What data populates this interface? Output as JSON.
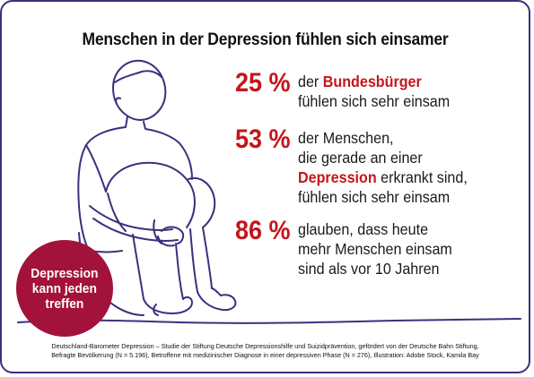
{
  "title": "Menschen in der Depression fühlen sich einsamer",
  "stats": [
    {
      "percent": "25 %",
      "lines": [
        {
          "before": "der ",
          "highlight": "Bundesbürger",
          "after": ""
        },
        {
          "before": "fühlen sich sehr einsam",
          "highlight": "",
          "after": ""
        }
      ]
    },
    {
      "percent": "53 %",
      "lines": [
        {
          "before": "der Menschen,",
          "highlight": "",
          "after": ""
        },
        {
          "before": "die gerade an einer",
          "highlight": "",
          "after": ""
        },
        {
          "before": "",
          "highlight": "Depression",
          "after": " erkrankt sind,"
        },
        {
          "before": "fühlen sich sehr einsam",
          "highlight": "",
          "after": ""
        }
      ]
    },
    {
      "percent": "86 %",
      "lines": [
        {
          "before": "glauben, dass heute",
          "highlight": "",
          "after": ""
        },
        {
          "before": "mehr Menschen einsam",
          "highlight": "",
          "after": ""
        },
        {
          "before": "sind als vor 10 Jahren",
          "highlight": "",
          "after": ""
        }
      ]
    }
  ],
  "badge": {
    "line1": "Depression",
    "line2": "kann jeden",
    "line3": "treffen",
    "color": "#a3123a"
  },
  "footer": {
    "line1": "Deutschland-Barometer Depression – Studie der Stiftung Deutsche Depressionshilfe und Suizidprävention, gefördert von der Deutsche Bahn Stiftung,",
    "line2": "Befragte Bevölkerung (N = 5.196), Betroffene mit medizinischer Diagnose in einer depressiven Phase (N = 276), Illustration: Adobe Stock, Kamila Bay"
  },
  "colors": {
    "accent": "#c4161c",
    "line_art": "#3d2f7e",
    "frame": "#3d2f7e"
  },
  "icons": [
    "sitting-person-illustration"
  ]
}
